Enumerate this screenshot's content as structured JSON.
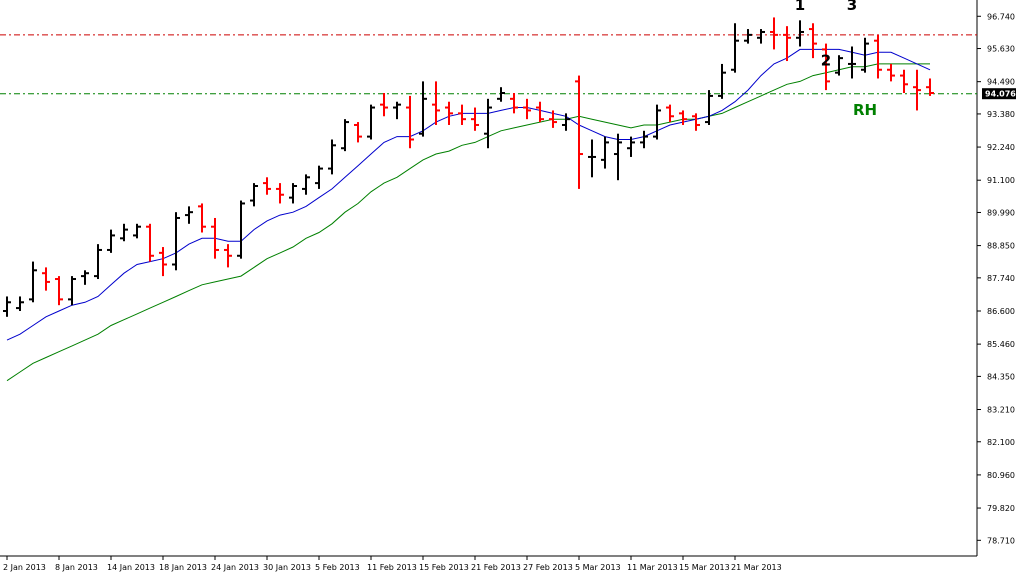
{
  "chart_data": {
    "type": "ohlc",
    "y_range": [
      78.17,
      97.3
    ],
    "y_ticks": [
      "96.740",
      "95.630",
      "94.490",
      "93.380",
      "92.240",
      "91.100",
      "89.990",
      "88.850",
      "87.740",
      "86.600",
      "85.460",
      "84.350",
      "83.210",
      "82.100",
      "80.960",
      "79.820",
      "78.710"
    ],
    "x_ticks": [
      "2 Jan 2013",
      "8 Jan 2013",
      "14 Jan 2013",
      "18 Jan 2013",
      "24 Jan 2013",
      "30 Jan 2013",
      "5 Feb 2013",
      "11 Feb 2013",
      "15 Feb 2013",
      "21 Feb 2013",
      "27 Feb 2013",
      "5 Mar 2013",
      "11 Mar 2013",
      "15 Mar 2013",
      "21 Mar 2013"
    ],
    "current_price": "94.076",
    "colors": {
      "up": "#000000",
      "down": "#ff0000",
      "ma_fast": "#0000cc",
      "ma_slow": "#008000",
      "resistance_line": "#cc0000",
      "price_line": "#008000",
      "price_tag_bg": "#000000"
    },
    "resistance_level": 96.1,
    "price_line_level": 94.076,
    "annotations": [
      {
        "text": "1",
        "bar": 61,
        "price": 96.95,
        "color": "#000000"
      },
      {
        "text": "2",
        "bar": 63,
        "price": 95.05,
        "color": "#000000"
      },
      {
        "text": "3",
        "bar": 65,
        "price": 96.95,
        "color": "#000000"
      },
      {
        "text": "RH",
        "bar": 66,
        "price": 93.35,
        "color": "#008000"
      }
    ],
    "bars": [
      {
        "o": 86.6,
        "h": 87.1,
        "l": 86.4,
        "c": 86.9
      },
      {
        "o": 86.7,
        "h": 87.1,
        "l": 86.6,
        "c": 86.9
      },
      {
        "o": 87.0,
        "h": 88.3,
        "l": 86.9,
        "c": 88.0
      },
      {
        "o": 87.9,
        "h": 88.1,
        "l": 87.3,
        "c": 87.6
      },
      {
        "o": 87.7,
        "h": 87.8,
        "l": 86.8,
        "c": 87.0
      },
      {
        "o": 87.0,
        "h": 87.8,
        "l": 86.8,
        "c": 87.7
      },
      {
        "o": 87.8,
        "h": 88.0,
        "l": 87.5,
        "c": 87.9
      },
      {
        "o": 87.8,
        "h": 88.9,
        "l": 87.7,
        "c": 88.7
      },
      {
        "o": 88.7,
        "h": 89.4,
        "l": 88.6,
        "c": 89.2
      },
      {
        "o": 89.1,
        "h": 89.6,
        "l": 89.0,
        "c": 89.4
      },
      {
        "o": 89.2,
        "h": 89.6,
        "l": 89.1,
        "c": 89.5
      },
      {
        "o": 89.5,
        "h": 89.6,
        "l": 88.3,
        "c": 88.5
      },
      {
        "o": 88.6,
        "h": 88.8,
        "l": 87.8,
        "c": 88.2
      },
      {
        "o": 88.2,
        "h": 90.0,
        "l": 88.0,
        "c": 89.8
      },
      {
        "o": 89.9,
        "h": 90.2,
        "l": 89.6,
        "c": 90.0
      },
      {
        "o": 90.2,
        "h": 90.3,
        "l": 89.3,
        "c": 89.5
      },
      {
        "o": 89.5,
        "h": 89.8,
        "l": 88.4,
        "c": 88.7
      },
      {
        "o": 88.7,
        "h": 88.9,
        "l": 88.1,
        "c": 88.5
      },
      {
        "o": 88.5,
        "h": 90.4,
        "l": 88.4,
        "c": 90.3
      },
      {
        "o": 90.4,
        "h": 91.0,
        "l": 90.2,
        "c": 90.9
      },
      {
        "o": 91.0,
        "h": 91.2,
        "l": 90.6,
        "c": 90.8
      },
      {
        "o": 90.8,
        "h": 91.0,
        "l": 90.3,
        "c": 90.6
      },
      {
        "o": 90.5,
        "h": 91.0,
        "l": 90.3,
        "c": 90.9
      },
      {
        "o": 90.8,
        "h": 91.3,
        "l": 90.6,
        "c": 91.2
      },
      {
        "o": 91.0,
        "h": 91.6,
        "l": 90.8,
        "c": 91.5
      },
      {
        "o": 91.5,
        "h": 92.5,
        "l": 91.3,
        "c": 92.3
      },
      {
        "o": 92.2,
        "h": 93.2,
        "l": 92.1,
        "c": 93.1
      },
      {
        "o": 93.0,
        "h": 93.1,
        "l": 92.4,
        "c": 92.6
      },
      {
        "o": 92.6,
        "h": 93.7,
        "l": 92.5,
        "c": 93.6
      },
      {
        "o": 93.7,
        "h": 94.1,
        "l": 93.3,
        "c": 93.6
      },
      {
        "o": 93.6,
        "h": 93.8,
        "l": 93.2,
        "c": 93.7
      },
      {
        "o": 93.6,
        "h": 94.0,
        "l": 92.2,
        "c": 92.5
      },
      {
        "o": 92.7,
        "h": 94.5,
        "l": 92.6,
        "c": 93.9
      },
      {
        "o": 93.7,
        "h": 94.5,
        "l": 93.0,
        "c": 93.5
      },
      {
        "o": 93.6,
        "h": 93.8,
        "l": 93.0,
        "c": 93.4
      },
      {
        "o": 93.4,
        "h": 93.7,
        "l": 93.0,
        "c": 93.2
      },
      {
        "o": 93.2,
        "h": 93.6,
        "l": 92.8,
        "c": 93.0
      },
      {
        "o": 92.7,
        "h": 93.9,
        "l": 92.2,
        "c": 93.6
      },
      {
        "o": 93.9,
        "h": 94.3,
        "l": 93.8,
        "c": 94.1
      },
      {
        "o": 93.9,
        "h": 94.1,
        "l": 93.4,
        "c": 93.6
      },
      {
        "o": 93.6,
        "h": 93.9,
        "l": 93.2,
        "c": 93.5
      },
      {
        "o": 93.6,
        "h": 93.8,
        "l": 93.1,
        "c": 93.2
      },
      {
        "o": 93.2,
        "h": 93.5,
        "l": 92.9,
        "c": 93.1
      },
      {
        "o": 93.0,
        "h": 93.4,
        "l": 92.8,
        "c": 93.2
      },
      {
        "o": 94.5,
        "h": 94.7,
        "l": 90.8,
        "c": 92.0
      },
      {
        "o": 91.9,
        "h": 92.5,
        "l": 91.2,
        "c": 91.9
      },
      {
        "o": 91.8,
        "h": 92.6,
        "l": 91.5,
        "c": 92.4
      },
      {
        "o": 92.0,
        "h": 92.7,
        "l": 91.1,
        "c": 92.4
      },
      {
        "o": 92.2,
        "h": 92.6,
        "l": 91.9,
        "c": 92.4
      },
      {
        "o": 92.4,
        "h": 92.8,
        "l": 92.2,
        "c": 92.6
      },
      {
        "o": 92.6,
        "h": 93.7,
        "l": 92.5,
        "c": 93.5
      },
      {
        "o": 93.6,
        "h": 93.7,
        "l": 93.1,
        "c": 93.3
      },
      {
        "o": 93.4,
        "h": 93.5,
        "l": 93.0,
        "c": 93.2
      },
      {
        "o": 93.3,
        "h": 93.4,
        "l": 92.8,
        "c": 93.0
      },
      {
        "o": 93.1,
        "h": 94.2,
        "l": 93.0,
        "c": 94.0
      },
      {
        "o": 94.0,
        "h": 95.1,
        "l": 93.9,
        "c": 94.8
      },
      {
        "o": 94.9,
        "h": 96.5,
        "l": 94.8,
        "c": 95.9
      },
      {
        "o": 95.9,
        "h": 96.3,
        "l": 95.8,
        "c": 96.1
      },
      {
        "o": 96.0,
        "h": 96.3,
        "l": 95.8,
        "c": 96.2
      },
      {
        "o": 96.2,
        "h": 96.7,
        "l": 95.6,
        "c": 96.1
      },
      {
        "o": 96.1,
        "h": 96.4,
        "l": 95.2,
        "c": 96.0
      },
      {
        "o": 96.0,
        "h": 96.6,
        "l": 95.7,
        "c": 96.2
      },
      {
        "o": 96.3,
        "h": 96.5,
        "l": 95.3,
        "c": 95.8
      },
      {
        "o": 95.6,
        "h": 95.8,
        "l": 94.2,
        "c": 94.5
      },
      {
        "o": 94.8,
        "h": 95.4,
        "l": 94.7,
        "c": 95.3
      },
      {
        "o": 95.1,
        "h": 95.7,
        "l": 94.6,
        "c": 95.1
      },
      {
        "o": 94.9,
        "h": 96.0,
        "l": 94.8,
        "c": 95.8
      },
      {
        "o": 95.9,
        "h": 96.1,
        "l": 94.6,
        "c": 94.9
      },
      {
        "o": 94.9,
        "h": 95.1,
        "l": 94.5,
        "c": 94.7
      },
      {
        "o": 94.7,
        "h": 94.9,
        "l": 94.1,
        "c": 94.4
      },
      {
        "o": 94.3,
        "h": 94.9,
        "l": 93.5,
        "c": 94.2
      },
      {
        "o": 94.3,
        "h": 94.6,
        "l": 94.0,
        "c": 94.1
      }
    ],
    "ma_fast": [
      85.6,
      85.8,
      86.1,
      86.4,
      86.6,
      86.8,
      86.9,
      87.1,
      87.5,
      87.9,
      88.2,
      88.3,
      88.4,
      88.6,
      88.9,
      89.1,
      89.1,
      89.0,
      89.0,
      89.4,
      89.7,
      89.9,
      90.0,
      90.2,
      90.5,
      90.8,
      91.2,
      91.6,
      92.0,
      92.4,
      92.6,
      92.6,
      92.8,
      93.1,
      93.3,
      93.4,
      93.4,
      93.4,
      93.5,
      93.6,
      93.6,
      93.5,
      93.4,
      93.3,
      93.0,
      92.8,
      92.6,
      92.5,
      92.5,
      92.6,
      92.8,
      93.0,
      93.1,
      93.2,
      93.3,
      93.5,
      93.8,
      94.2,
      94.7,
      95.1,
      95.3,
      95.6,
      95.6,
      95.6,
      95.6,
      95.5,
      95.4,
      95.5,
      95.5,
      95.3,
      95.1,
      94.9
    ],
    "ma_slow": [
      84.2,
      84.5,
      84.8,
      85.0,
      85.2,
      85.4,
      85.6,
      85.8,
      86.1,
      86.3,
      86.5,
      86.7,
      86.9,
      87.1,
      87.3,
      87.5,
      87.6,
      87.7,
      87.8,
      88.1,
      88.4,
      88.6,
      88.8,
      89.1,
      89.3,
      89.6,
      90.0,
      90.3,
      90.7,
      91.0,
      91.2,
      91.5,
      91.8,
      92.0,
      92.1,
      92.3,
      92.4,
      92.6,
      92.8,
      92.9,
      93.0,
      93.1,
      93.2,
      93.2,
      93.3,
      93.2,
      93.1,
      93.0,
      92.9,
      93.0,
      93.0,
      93.1,
      93.2,
      93.2,
      93.3,
      93.4,
      93.6,
      93.8,
      94.0,
      94.2,
      94.4,
      94.5,
      94.7,
      94.8,
      94.9,
      95.0,
      95.0,
      95.1,
      95.1,
      95.1,
      95.1,
      95.1
    ]
  }
}
